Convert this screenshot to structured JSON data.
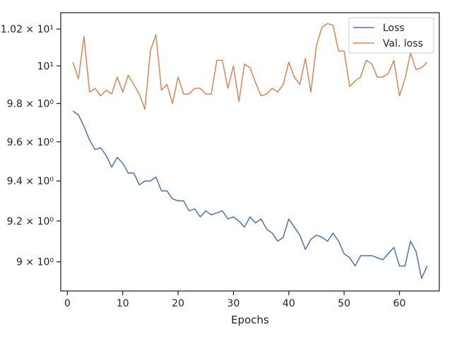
{
  "chart_data": {
    "type": "line",
    "xlabel": "Epochs",
    "ylabel": "",
    "xlim": [
      -1.2,
      67.2
    ],
    "ylim": [
      8.86,
      10.29
    ],
    "x_ticks": [
      {
        "value": 0,
        "label": "0"
      },
      {
        "value": 10,
        "label": "10"
      },
      {
        "value": 20,
        "label": "20"
      },
      {
        "value": 30,
        "label": "30"
      },
      {
        "value": 40,
        "label": "40"
      },
      {
        "value": 50,
        "label": "50"
      },
      {
        "value": 60,
        "label": "60"
      }
    ],
    "y_ticks": [
      {
        "value": 9.0,
        "label": "9 × 10⁰"
      },
      {
        "value": 9.2,
        "label": "9.2 × 10⁰"
      },
      {
        "value": 9.4,
        "label": "9.4 × 10⁰"
      },
      {
        "value": 9.6,
        "label": "9.6 × 10⁰"
      },
      {
        "value": 9.8,
        "label": "9.8 × 10⁰"
      },
      {
        "value": 10.0,
        "label": "10¹"
      },
      {
        "value": 10.2,
        "label": "1.02 × 10¹"
      }
    ],
    "legend_position": "top-right",
    "grid": false,
    "x": [
      1,
      2,
      3,
      4,
      5,
      6,
      7,
      8,
      9,
      10,
      11,
      12,
      13,
      14,
      15,
      16,
      17,
      18,
      19,
      20,
      21,
      22,
      23,
      24,
      25,
      26,
      27,
      28,
      29,
      30,
      31,
      32,
      33,
      34,
      35,
      36,
      37,
      38,
      39,
      40,
      41,
      42,
      43,
      44,
      45,
      46,
      47,
      48,
      49,
      50,
      51,
      52,
      53,
      54,
      55,
      56,
      57,
      58,
      59,
      60,
      61,
      62,
      63,
      64,
      65
    ],
    "series": [
      {
        "name": "Loss",
        "color": "#4c72b0",
        "values": [
          9.76,
          9.74,
          9.68,
          9.61,
          9.56,
          9.57,
          9.53,
          9.47,
          9.52,
          9.49,
          9.44,
          9.44,
          9.38,
          9.4,
          9.4,
          9.42,
          9.35,
          9.35,
          9.31,
          9.3,
          9.3,
          9.25,
          9.26,
          9.22,
          9.25,
          9.23,
          9.24,
          9.25,
          9.21,
          9.22,
          9.2,
          9.17,
          9.22,
          9.19,
          9.21,
          9.16,
          9.14,
          9.1,
          9.12,
          9.21,
          9.17,
          9.13,
          9.06,
          9.11,
          9.13,
          9.12,
          9.1,
          9.14,
          9.1,
          9.04,
          9.02,
          8.98,
          9.03,
          9.03,
          9.03,
          9.02,
          9.01,
          9.04,
          9.07,
          8.98,
          8.98,
          9.1,
          9.05,
          8.92,
          8.98
        ]
      },
      {
        "name": "Val. loss",
        "color": "#dd8452",
        "values": [
          10.02,
          9.93,
          10.16,
          9.86,
          9.88,
          9.84,
          9.87,
          9.85,
          9.94,
          9.86,
          9.95,
          9.9,
          9.85,
          9.77,
          10.08,
          10.17,
          9.87,
          9.9,
          9.8,
          9.94,
          9.85,
          9.85,
          9.88,
          9.88,
          9.85,
          9.85,
          10.03,
          10.03,
          9.88,
          10.0,
          9.81,
          10.01,
          9.99,
          9.91,
          9.84,
          9.85,
          9.88,
          9.86,
          9.9,
          10.02,
          9.94,
          9.9,
          10.04,
          9.86,
          10.11,
          10.21,
          10.23,
          10.22,
          10.08,
          10.08,
          9.89,
          9.92,
          9.94,
          10.03,
          10.01,
          9.94,
          9.94,
          9.96,
          10.03,
          9.84,
          9.93,
          10.07,
          9.98,
          9.99,
          10.02
        ]
      }
    ]
  }
}
